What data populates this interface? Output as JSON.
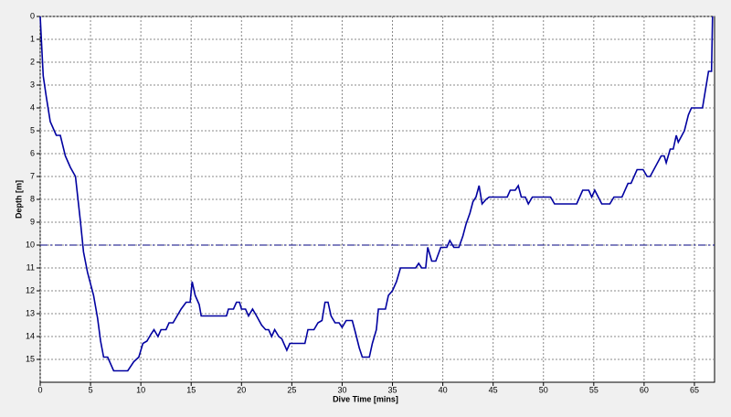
{
  "chart_data": {
    "type": "line",
    "xlabel": "Dive Time [mins]",
    "ylabel": "Depth [m]",
    "xlim": [
      0,
      67
    ],
    "xticks": [
      0,
      5,
      10,
      15,
      20,
      25,
      30,
      35,
      40,
      45,
      50,
      55,
      60,
      65
    ],
    "ylim": [
      16,
      0
    ],
    "yticks": [
      0,
      1,
      2,
      3,
      4,
      5,
      6,
      7,
      8,
      9,
      10,
      11,
      12,
      13,
      14,
      15
    ],
    "grid": true,
    "hline": 10,
    "hline_color": "#000080",
    "series": [
      {
        "name": null,
        "color": "#0000a0",
        "x": [
          0,
          0.3,
          0.6,
          1,
          1.6,
          2,
          2.5,
          3,
          3.5,
          4,
          4.3,
          4.7,
          5.3,
          5.7,
          6,
          6.3,
          6.7,
          7.3,
          8,
          8.7,
          9.3,
          9.8,
          10.2,
          10.6,
          11,
          11.3,
          11.7,
          12,
          12.5,
          12.8,
          13.2,
          13.6,
          14,
          14.5,
          14.9,
          15.1,
          15.4,
          15.8,
          16,
          17,
          18,
          18.5,
          18.7,
          19.2,
          19.5,
          19.8,
          20,
          20.4,
          20.7,
          21.1,
          21.5,
          22,
          22.4,
          22.7,
          23,
          23.3,
          23.7,
          24,
          24.5,
          24.8,
          25.5,
          26.3,
          26.6,
          27.2,
          27.6,
          28,
          28.3,
          28.6,
          28.9,
          29.3,
          29.7,
          30,
          30.4,
          31,
          31.3,
          31.7,
          32,
          32.7,
          33,
          33.4,
          33.6,
          34.3,
          34.6,
          35,
          35.4,
          35.8,
          36.5,
          37,
          37.3,
          37.6,
          37.9,
          38.3,
          38.5,
          38.9,
          39.3,
          39.8,
          40.4,
          40.7,
          41.1,
          41.6,
          42,
          42.3,
          42.7,
          43,
          43.3,
          43.6,
          43.9,
          44.3,
          44.6,
          45.5,
          46.4,
          46.7,
          47.2,
          47.5,
          47.8,
          48.2,
          48.5,
          48.9,
          50,
          50.7,
          51.1,
          52,
          53.3,
          53.9,
          54.5,
          54.8,
          55.1,
          55.8,
          56.6,
          57,
          57.8,
          58.4,
          58.7,
          59.3,
          59.9,
          60.3,
          60.6,
          61.7,
          62,
          62.2,
          62.6,
          62.9,
          63.2,
          63.4,
          64,
          64.4,
          64.7,
          65.8,
          66.4,
          66.7,
          66.8
        ],
        "values": [
          0,
          2.6,
          3.5,
          4.6,
          5.2,
          5.2,
          6.1,
          6.6,
          7,
          9,
          10.3,
          11.2,
          12.2,
          13.2,
          14.2,
          14.9,
          14.9,
          15.5,
          15.5,
          15.5,
          15.1,
          14.9,
          14.3,
          14.2,
          13.9,
          13.7,
          14,
          13.7,
          13.7,
          13.4,
          13.4,
          13.1,
          12.8,
          12.5,
          12.5,
          11.6,
          12.2,
          12.6,
          13.1,
          13.1,
          13.1,
          13.1,
          12.8,
          12.8,
          12.5,
          12.5,
          12.8,
          12.8,
          13.1,
          12.8,
          13.1,
          13.5,
          13.7,
          13.7,
          14,
          13.7,
          14,
          14.1,
          14.6,
          14.3,
          14.3,
          14.3,
          13.7,
          13.7,
          13.4,
          13.3,
          12.5,
          12.5,
          13.1,
          13.4,
          13.4,
          13.6,
          13.3,
          13.3,
          13.8,
          14.5,
          14.9,
          14.9,
          14.3,
          13.7,
          12.8,
          12.8,
          12.2,
          12,
          11.6,
          11,
          11,
          11,
          11,
          10.8,
          11,
          11,
          10.1,
          10.7,
          10.7,
          10.1,
          10.1,
          9.8,
          10.1,
          10.1,
          9.6,
          9.1,
          8.6,
          8.1,
          7.9,
          7.4,
          8.2,
          8,
          7.9,
          7.9,
          7.9,
          7.6,
          7.6,
          7.4,
          7.9,
          7.9,
          8.2,
          7.9,
          7.9,
          7.9,
          8.2,
          8.2,
          8.2,
          7.6,
          7.6,
          7.9,
          7.6,
          8.2,
          8.2,
          7.9,
          7.9,
          7.3,
          7.3,
          6.7,
          6.7,
          7,
          7,
          6.1,
          6.1,
          6.4,
          5.8,
          5.8,
          5.2,
          5.5,
          5,
          4.3,
          4,
          4,
          2.4,
          2.4,
          0
        ]
      }
    ]
  }
}
